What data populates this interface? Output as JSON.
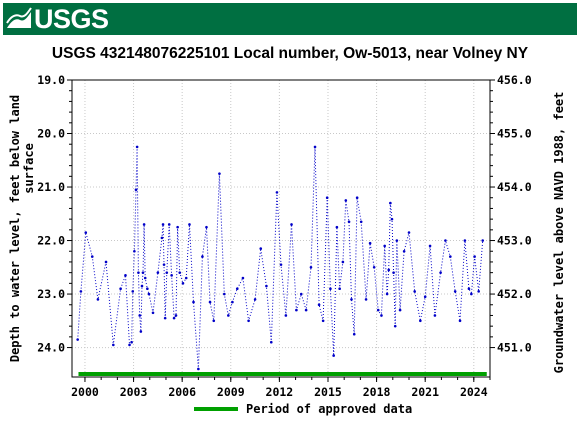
{
  "header": {
    "logo_text": "USGS"
  },
  "chart_data": {
    "type": "line",
    "title": "USGS 432148076225101 Local number, Ow-5013, near Volney NY",
    "ylabel_left": [
      "Depth to water level, feet below land",
      "surface"
    ],
    "ylabel_right": "Groundwater level above NAVD 1988, feet",
    "yticks_left": [
      "19.0",
      "20.0",
      "21.0",
      "22.0",
      "23.0",
      "24.0"
    ],
    "yticks_right": [
      "456.0",
      "455.0",
      "454.0",
      "453.0",
      "452.0",
      "451.0"
    ],
    "xticks": [
      "2000",
      "2003",
      "2006",
      "2009",
      "2012",
      "2015",
      "2018",
      "2021",
      "2024"
    ],
    "ylim_left": [
      24.55,
      19.0
    ],
    "ylim_right": [
      450.75,
      456.3
    ],
    "xlim": [
      1999.2,
      2025.0
    ],
    "grid": true,
    "legend": {
      "label": "Period of approved data",
      "color": "#00a000",
      "placement": "bottom"
    },
    "series_color": "#0000c8",
    "approved_period": [
      1999.6,
      2024.8
    ],
    "series": [
      {
        "x": [
          1999.55,
          1999.75,
          2000.05,
          2000.45,
          2000.8,
          2001.3,
          2001.75,
          2002.2,
          2002.5,
          2002.75,
          2002.88,
          2002.95,
          2003.05,
          2003.15,
          2003.22,
          2003.3,
          2003.38,
          2003.45,
          2003.52,
          2003.58,
          2003.65,
          2003.72,
          2003.85,
          2003.95,
          2004.2,
          2004.5,
          2004.75,
          2004.82,
          2004.88,
          2004.95,
          2005.05,
          2005.2,
          2005.35,
          2005.5,
          2005.62,
          2005.72,
          2005.85,
          2006.05,
          2006.25,
          2006.45,
          2006.7,
          2007.0,
          2007.25,
          2007.5,
          2007.72,
          2007.95,
          2008.3,
          2008.6,
          2008.85,
          2009.1,
          2009.4,
          2009.75,
          2010.1,
          2010.5,
          2010.85,
          2011.2,
          2011.5,
          2011.85,
          2012.1,
          2012.4,
          2012.75,
          2013.05,
          2013.35,
          2013.65,
          2013.95,
          2014.2,
          2014.45,
          2014.7,
          2014.95,
          2015.15,
          2015.35,
          2015.55,
          2015.72,
          2015.92,
          2016.1,
          2016.3,
          2016.45,
          2016.62,
          2016.8,
          2017.05,
          2017.35,
          2017.6,
          2017.85,
          2018.1,
          2018.3,
          2018.5,
          2018.65,
          2018.75,
          2018.85,
          2018.95,
          2019.05,
          2019.15,
          2019.25,
          2019.45,
          2019.7,
          2020.0,
          2020.35,
          2020.7,
          2021.0,
          2021.3,
          2021.6,
          2021.95,
          2022.25,
          2022.55,
          2022.85,
          2023.15,
          2023.45,
          2023.7,
          2023.85,
          2024.05,
          2024.3,
          2024.55
        ],
        "y": [
          23.85,
          22.95,
          21.85,
          22.3,
          23.1,
          22.4,
          23.95,
          22.9,
          22.65,
          23.95,
          23.9,
          22.95,
          22.2,
          21.05,
          20.25,
          22.6,
          23.4,
          23.7,
          22.85,
          22.6,
          21.7,
          22.7,
          22.9,
          23.0,
          23.35,
          22.6,
          21.95,
          21.7,
          22.45,
          23.45,
          22.6,
          21.7,
          22.65,
          23.45,
          23.4,
          21.75,
          22.6,
          22.8,
          22.7,
          21.7,
          23.15,
          24.4,
          22.3,
          21.75,
          23.15,
          23.5,
          20.75,
          23.0,
          23.4,
          23.15,
          22.9,
          22.7,
          23.5,
          23.1,
          22.15,
          22.85,
          23.9,
          21.1,
          22.45,
          23.4,
          21.7,
          23.3,
          23.0,
          23.3,
          22.5,
          20.25,
          23.2,
          23.5,
          21.2,
          22.9,
          24.15,
          21.75,
          22.9,
          22.4,
          21.25,
          21.65,
          23.1,
          23.75,
          21.2,
          21.65,
          23.1,
          22.05,
          22.5,
          23.3,
          23.4,
          22.1,
          23.0,
          22.55,
          21.3,
          21.6,
          22.6,
          23.6,
          22.0,
          23.3,
          22.2,
          21.85,
          22.95,
          23.5,
          23.05,
          22.1,
          23.4,
          22.6,
          22.0,
          22.3,
          22.95,
          23.5,
          22.0,
          22.9,
          23.0,
          22.3,
          22.95,
          22.0
        ]
      }
    ]
  }
}
